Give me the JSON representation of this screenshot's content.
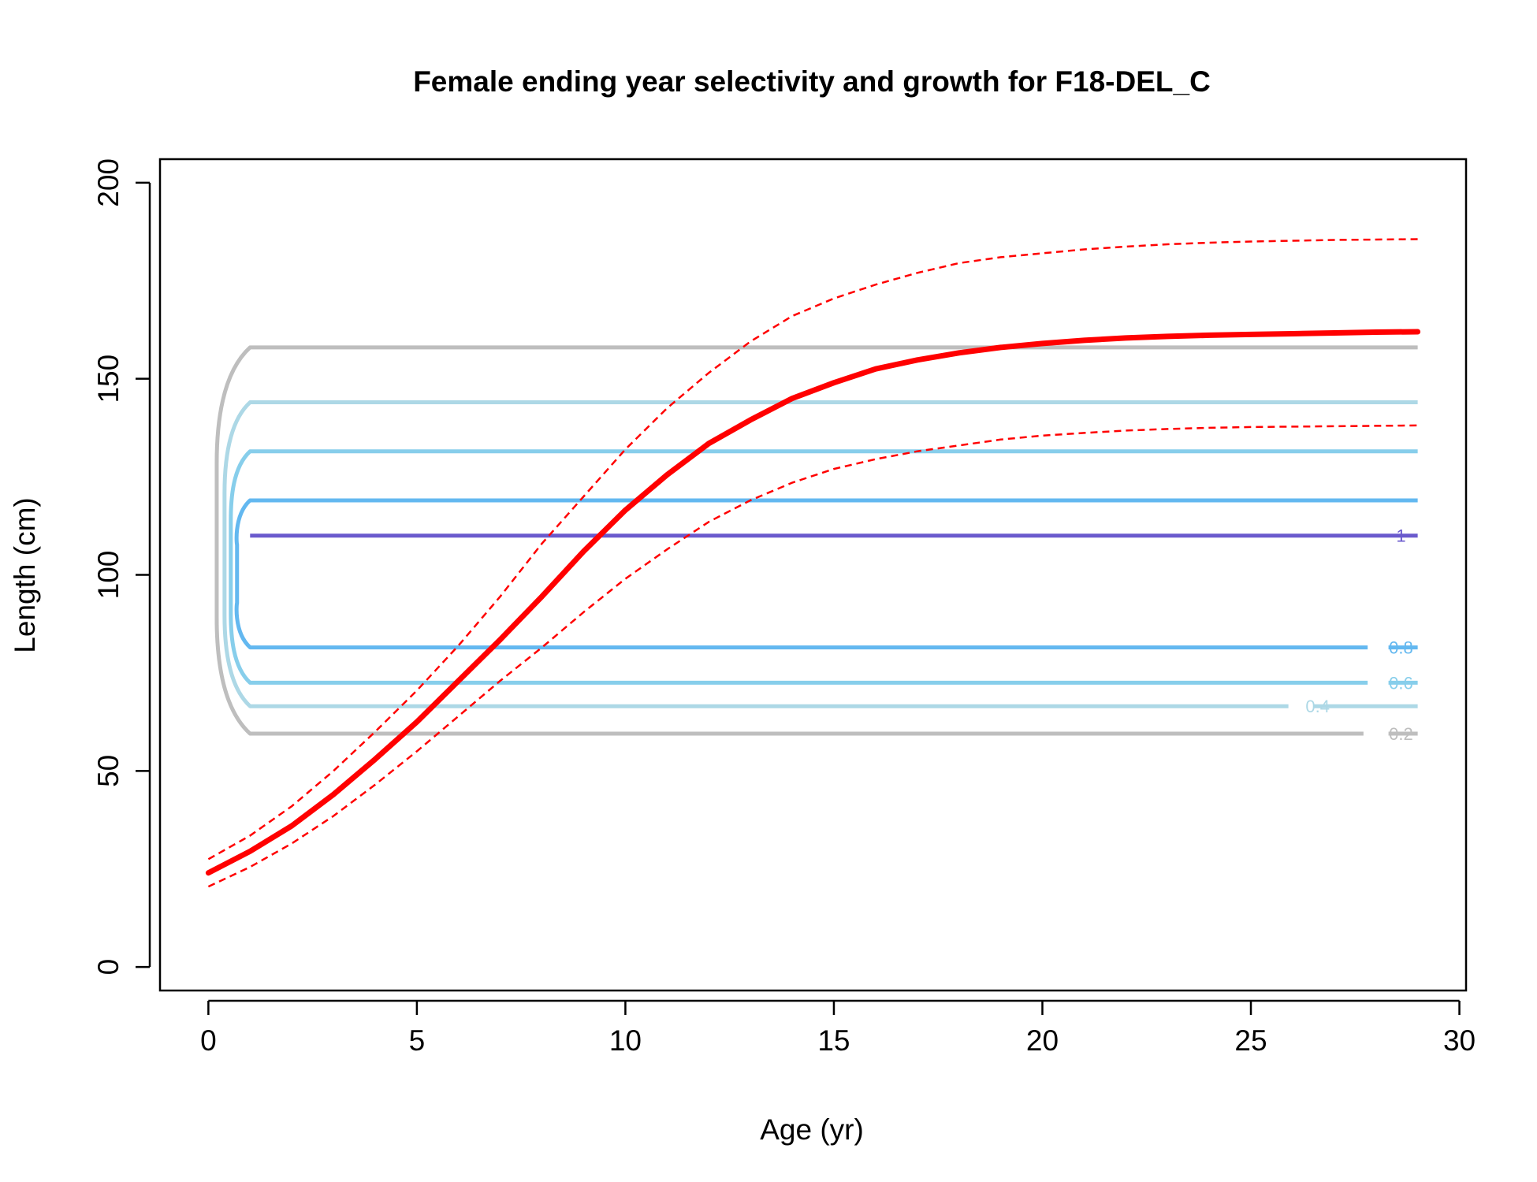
{
  "chart_data": {
    "type": "line",
    "title": "Female ending year selectivity and growth for F18-DEL_C",
    "xlabel": "Age (yr)",
    "ylabel": "Length (cm)",
    "xlim": [
      -1.16,
      30.16
    ],
    "ylim": [
      -6,
      206
    ],
    "xticks": [
      0,
      5,
      10,
      15,
      20,
      25,
      30
    ],
    "yticks": [
      0,
      50,
      100,
      150,
      200
    ],
    "xtick_labels": [
      "0",
      "5",
      "10",
      "15",
      "20",
      "25",
      "30"
    ],
    "ytick_labels": [
      "0",
      "50",
      "100",
      "150",
      "200"
    ],
    "grid": false,
    "legend": "none",
    "growth_mean": {
      "color": "#ff0000",
      "x": [
        0,
        1,
        2,
        3,
        4,
        5,
        6,
        7,
        8,
        9,
        10,
        11,
        12,
        13,
        14,
        15,
        16,
        17,
        18,
        19,
        20,
        21,
        22,
        23,
        24,
        25,
        26,
        27,
        28,
        29
      ],
      "y": [
        24,
        29.5,
        36,
        44,
        53,
        62.5,
        73,
        83.5,
        94.5,
        106,
        116.5,
        125.5,
        133.5,
        139.5,
        145,
        149,
        152.5,
        154.8,
        156.6,
        158,
        159,
        159.8,
        160.4,
        160.8,
        161.1,
        161.3,
        161.5,
        161.7,
        161.9,
        162
      ]
    },
    "growth_upper": {
      "color": "#ff0000",
      "x": [
        0,
        1,
        2,
        3,
        4,
        5,
        6,
        7,
        8,
        9,
        10,
        11,
        12,
        13,
        14,
        15,
        16,
        17,
        18,
        19,
        20,
        21,
        22,
        23,
        24,
        25,
        26,
        27,
        28,
        29
      ],
      "y": [
        27.5,
        33.5,
        41,
        50,
        60,
        70.5,
        82,
        94.5,
        108,
        120,
        132,
        142.5,
        151.5,
        159.5,
        166,
        170.5,
        174,
        177,
        179.5,
        181,
        182,
        183,
        183.7,
        184.3,
        184.7,
        185,
        185.2,
        185.4,
        185.5,
        185.6
      ]
    },
    "growth_lower": {
      "color": "#ff0000",
      "x": [
        0,
        1,
        2,
        3,
        4,
        5,
        6,
        7,
        8,
        9,
        10,
        11,
        12,
        13,
        14,
        15,
        16,
        17,
        18,
        19,
        20,
        21,
        22,
        23,
        24,
        25,
        26,
        27,
        28,
        29
      ],
      "y": [
        20.5,
        25.5,
        31.5,
        38.5,
        46.5,
        55,
        64,
        73,
        81.5,
        90.5,
        99,
        106.5,
        113.5,
        119,
        123.5,
        127,
        129.5,
        131.5,
        133,
        134.5,
        135.5,
        136.2,
        136.8,
        137.2,
        137.5,
        137.7,
        137.8,
        137.9,
        138,
        138.1
      ]
    },
    "selectivity_contours": [
      {
        "level": "0.2",
        "color": "#bebebe",
        "low": 59.5,
        "high": 158,
        "label_text": "0.2",
        "show_label": true
      },
      {
        "level": "0.4",
        "color": "#add8e6",
        "low": 66.5,
        "high": 144,
        "label_text": "0.4",
        "show_label": true
      },
      {
        "level": "0.6",
        "color": "#87ceeb",
        "low": 72.5,
        "high": 131.5,
        "label_text": "0.6",
        "show_label": true
      },
      {
        "level": "0.8",
        "color": "#63b8f0",
        "low": 81.5,
        "high": 119,
        "label_text": "0.8",
        "show_label": true
      },
      {
        "level": "1",
        "color": "#6a5acd",
        "low": 110,
        "high": 110,
        "label_text": "1",
        "show_label": true
      }
    ]
  }
}
